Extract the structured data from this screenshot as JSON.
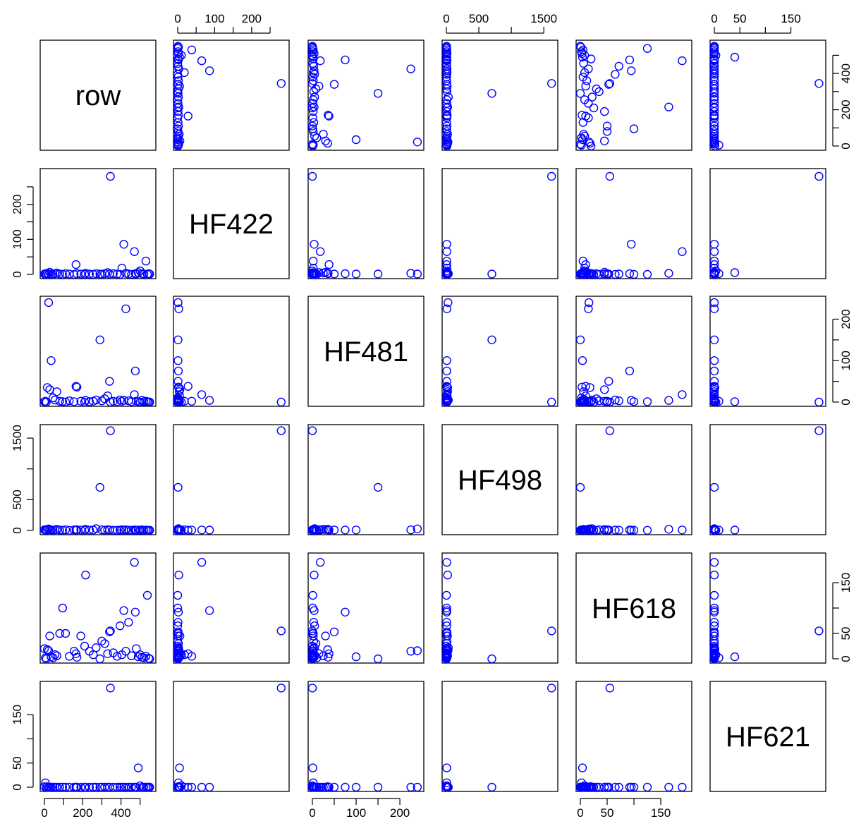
{
  "chart_data": {
    "type": "scatter",
    "subtype": "pairs-matrix",
    "marker": "open-circle",
    "marker_color": "#0000ff",
    "variables": [
      {
        "name": "row",
        "range": [
          0,
          560
        ],
        "ticks": [
          0,
          100,
          200,
          300,
          400,
          500
        ],
        "tick_labels": [
          "0",
          "",
          "200",
          "",
          "400",
          ""
        ]
      },
      {
        "name": "HF422",
        "range": [
          0,
          290
        ],
        "ticks": [
          0,
          50,
          100,
          150,
          200,
          250
        ],
        "tick_labels": [
          "0",
          "",
          "100",
          "",
          "200",
          ""
        ]
      },
      {
        "name": "HF481",
        "range": [
          0,
          245
        ],
        "ticks": [
          0,
          50,
          100,
          150,
          200
        ],
        "tick_labels": [
          "0",
          "",
          "100",
          "",
          "200"
        ]
      },
      {
        "name": "HF498",
        "range": [
          0,
          1650
        ],
        "ticks": [
          0,
          500,
          1000,
          1500
        ],
        "tick_labels": [
          "0",
          "500",
          "",
          "1500"
        ]
      },
      {
        "name": "HF618",
        "range": [
          0,
          200
        ],
        "ticks": [
          0,
          50,
          100,
          150
        ],
        "tick_labels": [
          "0",
          "50",
          "",
          "150"
        ]
      },
      {
        "name": "HF621",
        "range": [
          0,
          210
        ],
        "ticks": [
          0,
          50,
          100,
          150
        ],
        "tick_labels": [
          "0",
          "50",
          "",
          "150"
        ]
      }
    ],
    "observations": [
      {
        "row": 0,
        "HF422": 1,
        "HF481": 1,
        "HF498": 10,
        "HF618": 20,
        "HF621": 1
      },
      {
        "row": 5,
        "HF422": 2,
        "HF481": 2,
        "HF498": 5,
        "HF618": 2,
        "HF621": 9
      },
      {
        "row": 10,
        "HF422": 0,
        "HF481": 0,
        "HF498": 0,
        "HF618": 0,
        "HF621": 0
      },
      {
        "row": 15,
        "HF422": 3,
        "HF481": 35,
        "HF498": 20,
        "HF618": 18,
        "HF621": 1
      },
      {
        "row": 22,
        "HF422": 1,
        "HF481": 240,
        "HF498": 25,
        "HF618": 16,
        "HF621": 0
      },
      {
        "row": 28,
        "HF422": 6,
        "HF481": 30,
        "HF498": 15,
        "HF618": 45,
        "HF621": 0
      },
      {
        "row": 35,
        "HF422": 1,
        "HF481": 100,
        "HF498": 8,
        "HF618": 4,
        "HF621": 0
      },
      {
        "row": 45,
        "HF422": 0,
        "HF481": 10,
        "HF498": 3,
        "HF618": 2,
        "HF621": 0
      },
      {
        "row": 55,
        "HF422": 2,
        "HF481": 5,
        "HF498": 12,
        "HF618": 8,
        "HF621": 0
      },
      {
        "row": 65,
        "HF422": 4,
        "HF481": 25,
        "HF498": 18,
        "HF618": 6,
        "HF621": 0
      },
      {
        "row": 80,
        "HF422": 1,
        "HF481": 2,
        "HF498": 6,
        "HF618": 50,
        "HF621": 0
      },
      {
        "row": 95,
        "HF422": 0,
        "HF481": 1,
        "HF498": 4,
        "HF618": 100,
        "HF621": 0
      },
      {
        "row": 110,
        "HF422": 2,
        "HF481": 0,
        "HF498": 10,
        "HF618": 50,
        "HF621": 0
      },
      {
        "row": 130,
        "HF422": 1,
        "HF481": 3,
        "HF498": 2,
        "HF618": 5,
        "HF621": 0
      },
      {
        "row": 155,
        "HF422": 0,
        "HF481": 1,
        "HF498": 9,
        "HF618": 15,
        "HF621": 0
      },
      {
        "row": 165,
        "HF422": 28,
        "HF481": 38,
        "HF498": 5,
        "HF618": 10,
        "HF621": 0
      },
      {
        "row": 170,
        "HF422": 2,
        "HF481": 36,
        "HF498": 12,
        "HF618": 3,
        "HF621": 0
      },
      {
        "row": 190,
        "HF422": 1,
        "HF481": 2,
        "HF498": 7,
        "HF618": 45,
        "HF621": 0
      },
      {
        "row": 210,
        "HF422": 0,
        "HF481": 0,
        "HF498": 3,
        "HF618": 25,
        "HF621": 0
      },
      {
        "row": 215,
        "HF422": 3,
        "HF481": 4,
        "HF498": 20,
        "HF618": 165,
        "HF621": 0
      },
      {
        "row": 235,
        "HF422": 1,
        "HF481": 1,
        "HF498": 8,
        "HF618": 15,
        "HF621": 0
      },
      {
        "row": 255,
        "HF422": 0,
        "HF481": 2,
        "HF498": 6,
        "HF618": 8,
        "HF621": 0
      },
      {
        "row": 270,
        "HF422": 2,
        "HF481": 5,
        "HF498": 30,
        "HF618": 22,
        "HF621": 0
      },
      {
        "row": 290,
        "HF422": 1,
        "HF481": 150,
        "HF498": 700,
        "HF618": 0,
        "HF621": 0
      },
      {
        "row": 300,
        "HF422": 0,
        "HF481": 3,
        "HF498": 10,
        "HF618": 35,
        "HF621": 0
      },
      {
        "row": 315,
        "HF422": 2,
        "HF481": 8,
        "HF498": 5,
        "HF618": 30,
        "HF621": 0
      },
      {
        "row": 330,
        "HF422": 5,
        "HF481": 15,
        "HF498": 12,
        "HF618": 10,
        "HF621": 0
      },
      {
        "row": 340,
        "HF422": 1,
        "HF481": 50,
        "HF498": 8,
        "HF618": 53,
        "HF621": 0
      },
      {
        "row": 345,
        "HF422": 280,
        "HF481": 0,
        "HF498": 1620,
        "HF618": 55,
        "HF621": 205
      },
      {
        "row": 360,
        "HF422": 2,
        "HF481": 2,
        "HF498": 4,
        "HF618": 12,
        "HF621": 0
      },
      {
        "row": 380,
        "HF422": 1,
        "HF481": 1,
        "HF498": 3,
        "HF618": 5,
        "HF621": 0
      },
      {
        "row": 395,
        "HF422": 0,
        "HF481": 5,
        "HF498": 6,
        "HF618": 65,
        "HF621": 0
      },
      {
        "row": 405,
        "HF422": 18,
        "HF481": 2,
        "HF498": 10,
        "HF618": 8,
        "HF621": 0
      },
      {
        "row": 415,
        "HF422": 86,
        "HF481": 4,
        "HF498": 6,
        "HF618": 95,
        "HF621": 0
      },
      {
        "row": 425,
        "HF422": 3,
        "HF481": 225,
        "HF498": 9,
        "HF618": 15,
        "HF621": 0
      },
      {
        "row": 440,
        "HF422": 1,
        "HF481": 3,
        "HF498": 5,
        "HF618": 72,
        "HF621": 0
      },
      {
        "row": 455,
        "HF422": 0,
        "HF481": 1,
        "HF498": 3,
        "HF618": 6,
        "HF621": 0
      },
      {
        "row": 470,
        "HF422": 65,
        "HF481": 18,
        "HF498": 8,
        "HF618": 190,
        "HF621": 0
      },
      {
        "row": 475,
        "HF422": 2,
        "HF481": 75,
        "HF498": 7,
        "HF618": 92,
        "HF621": 0
      },
      {
        "row": 480,
        "HF422": 1,
        "HF481": 2,
        "HF498": 4,
        "HF618": 20,
        "HF621": 0
      },
      {
        "row": 490,
        "HF422": 5,
        "HF481": 1,
        "HF498": 6,
        "HF618": 4,
        "HF621": 40
      },
      {
        "row": 500,
        "HF422": 10,
        "HF481": 0,
        "HF498": 3,
        "HF618": 8,
        "HF621": 3
      },
      {
        "row": 510,
        "HF422": 2,
        "HF481": 4,
        "HF498": 10,
        "HF618": 3,
        "HF621": 0
      },
      {
        "row": 520,
        "HF422": 1,
        "HF481": 1,
        "HF498": 5,
        "HF618": 2,
        "HF621": 0
      },
      {
        "row": 530,
        "HF422": 38,
        "HF481": 2,
        "HF498": 7,
        "HF618": 5,
        "HF621": 0
      },
      {
        "row": 538,
        "HF422": 0,
        "HF481": 1,
        "HF498": 2,
        "HF618": 125,
        "HF621": 0
      },
      {
        "row": 545,
        "HF422": 2,
        "HF481": 0,
        "HF498": 4,
        "HF618": 1,
        "HF621": 0
      },
      {
        "row": 550,
        "HF422": 1,
        "HF481": 0,
        "HF498": 3,
        "HF618": 0,
        "HF621": 0
      }
    ]
  }
}
